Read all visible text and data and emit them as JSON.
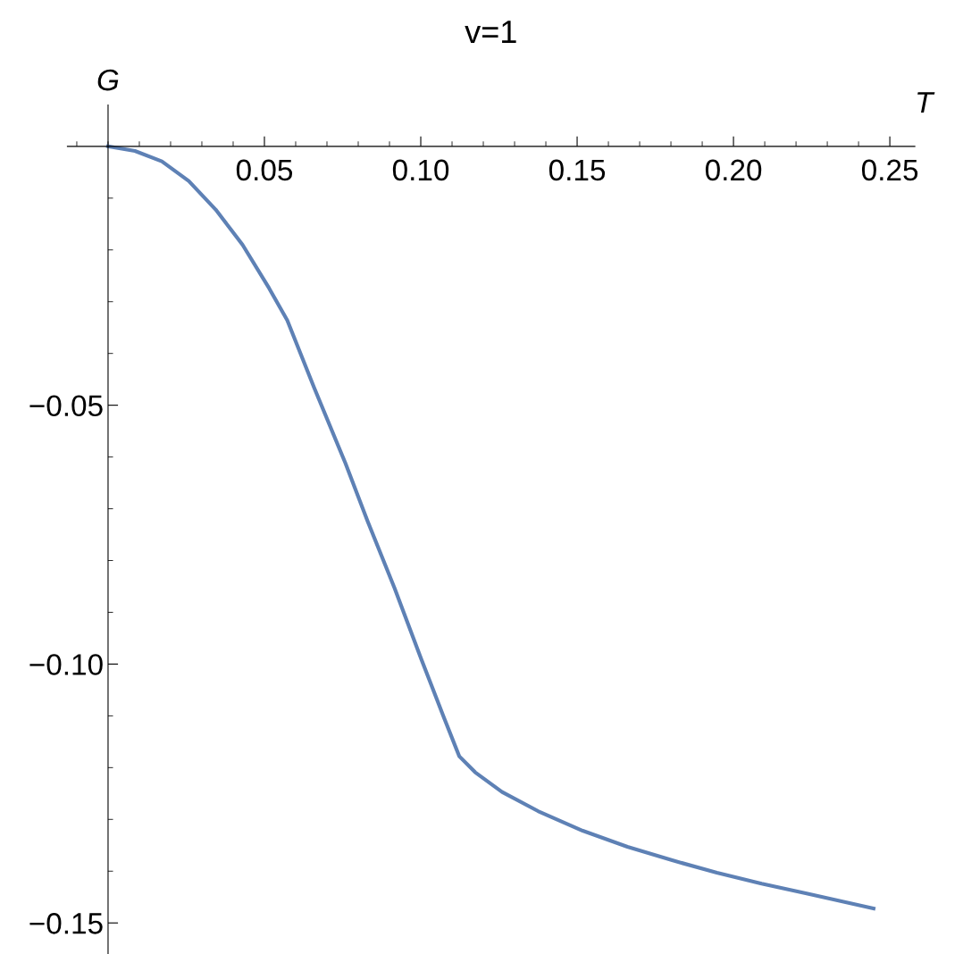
{
  "chart_data": {
    "type": "line",
    "title": "v=1",
    "xlabel": "T",
    "ylabel": "G",
    "x": [
      0,
      0.0086,
      0.0172,
      0.0258,
      0.0344,
      0.043,
      0.0515,
      0.0573,
      0.0659,
      0.0759,
      0.083,
      0.0916,
      0.1002,
      0.1074,
      0.1123,
      0.1174,
      0.126,
      0.1375,
      0.1518,
      0.1661,
      0.1804,
      0.1947,
      0.209,
      0.2234,
      0.2448
    ],
    "series": [
      {
        "color": "#5e81b5",
        "values": [
          0,
          -0.0009,
          -0.0029,
          -0.0067,
          -0.0122,
          -0.019,
          -0.0274,
          -0.0336,
          -0.0466,
          -0.0612,
          -0.0724,
          -0.0853,
          -0.0991,
          -0.1103,
          -0.1178,
          -0.1209,
          -0.1247,
          -0.1284,
          -0.1322,
          -0.1353,
          -0.1379,
          -0.1403,
          -0.1424,
          -0.1443,
          -0.1472
        ]
      }
    ],
    "xlim": [
      -0.013,
      0.258
    ],
    "ylim": [
      -0.156,
      0.008
    ],
    "xticks": [
      {
        "value": 0.05,
        "label": "0.05"
      },
      {
        "value": 0.1,
        "label": "0.10"
      },
      {
        "value": 0.15,
        "label": "0.15"
      },
      {
        "value": 0.2,
        "label": "0.20"
      },
      {
        "value": 0.25,
        "label": "0.25"
      }
    ],
    "yticks": [
      {
        "value": -0.05,
        "label": "−0.05"
      },
      {
        "value": -0.1,
        "label": "−0.10"
      },
      {
        "value": -0.15,
        "label": "−0.15"
      }
    ],
    "grid": false,
    "marker": "none",
    "line_style": "solid"
  }
}
